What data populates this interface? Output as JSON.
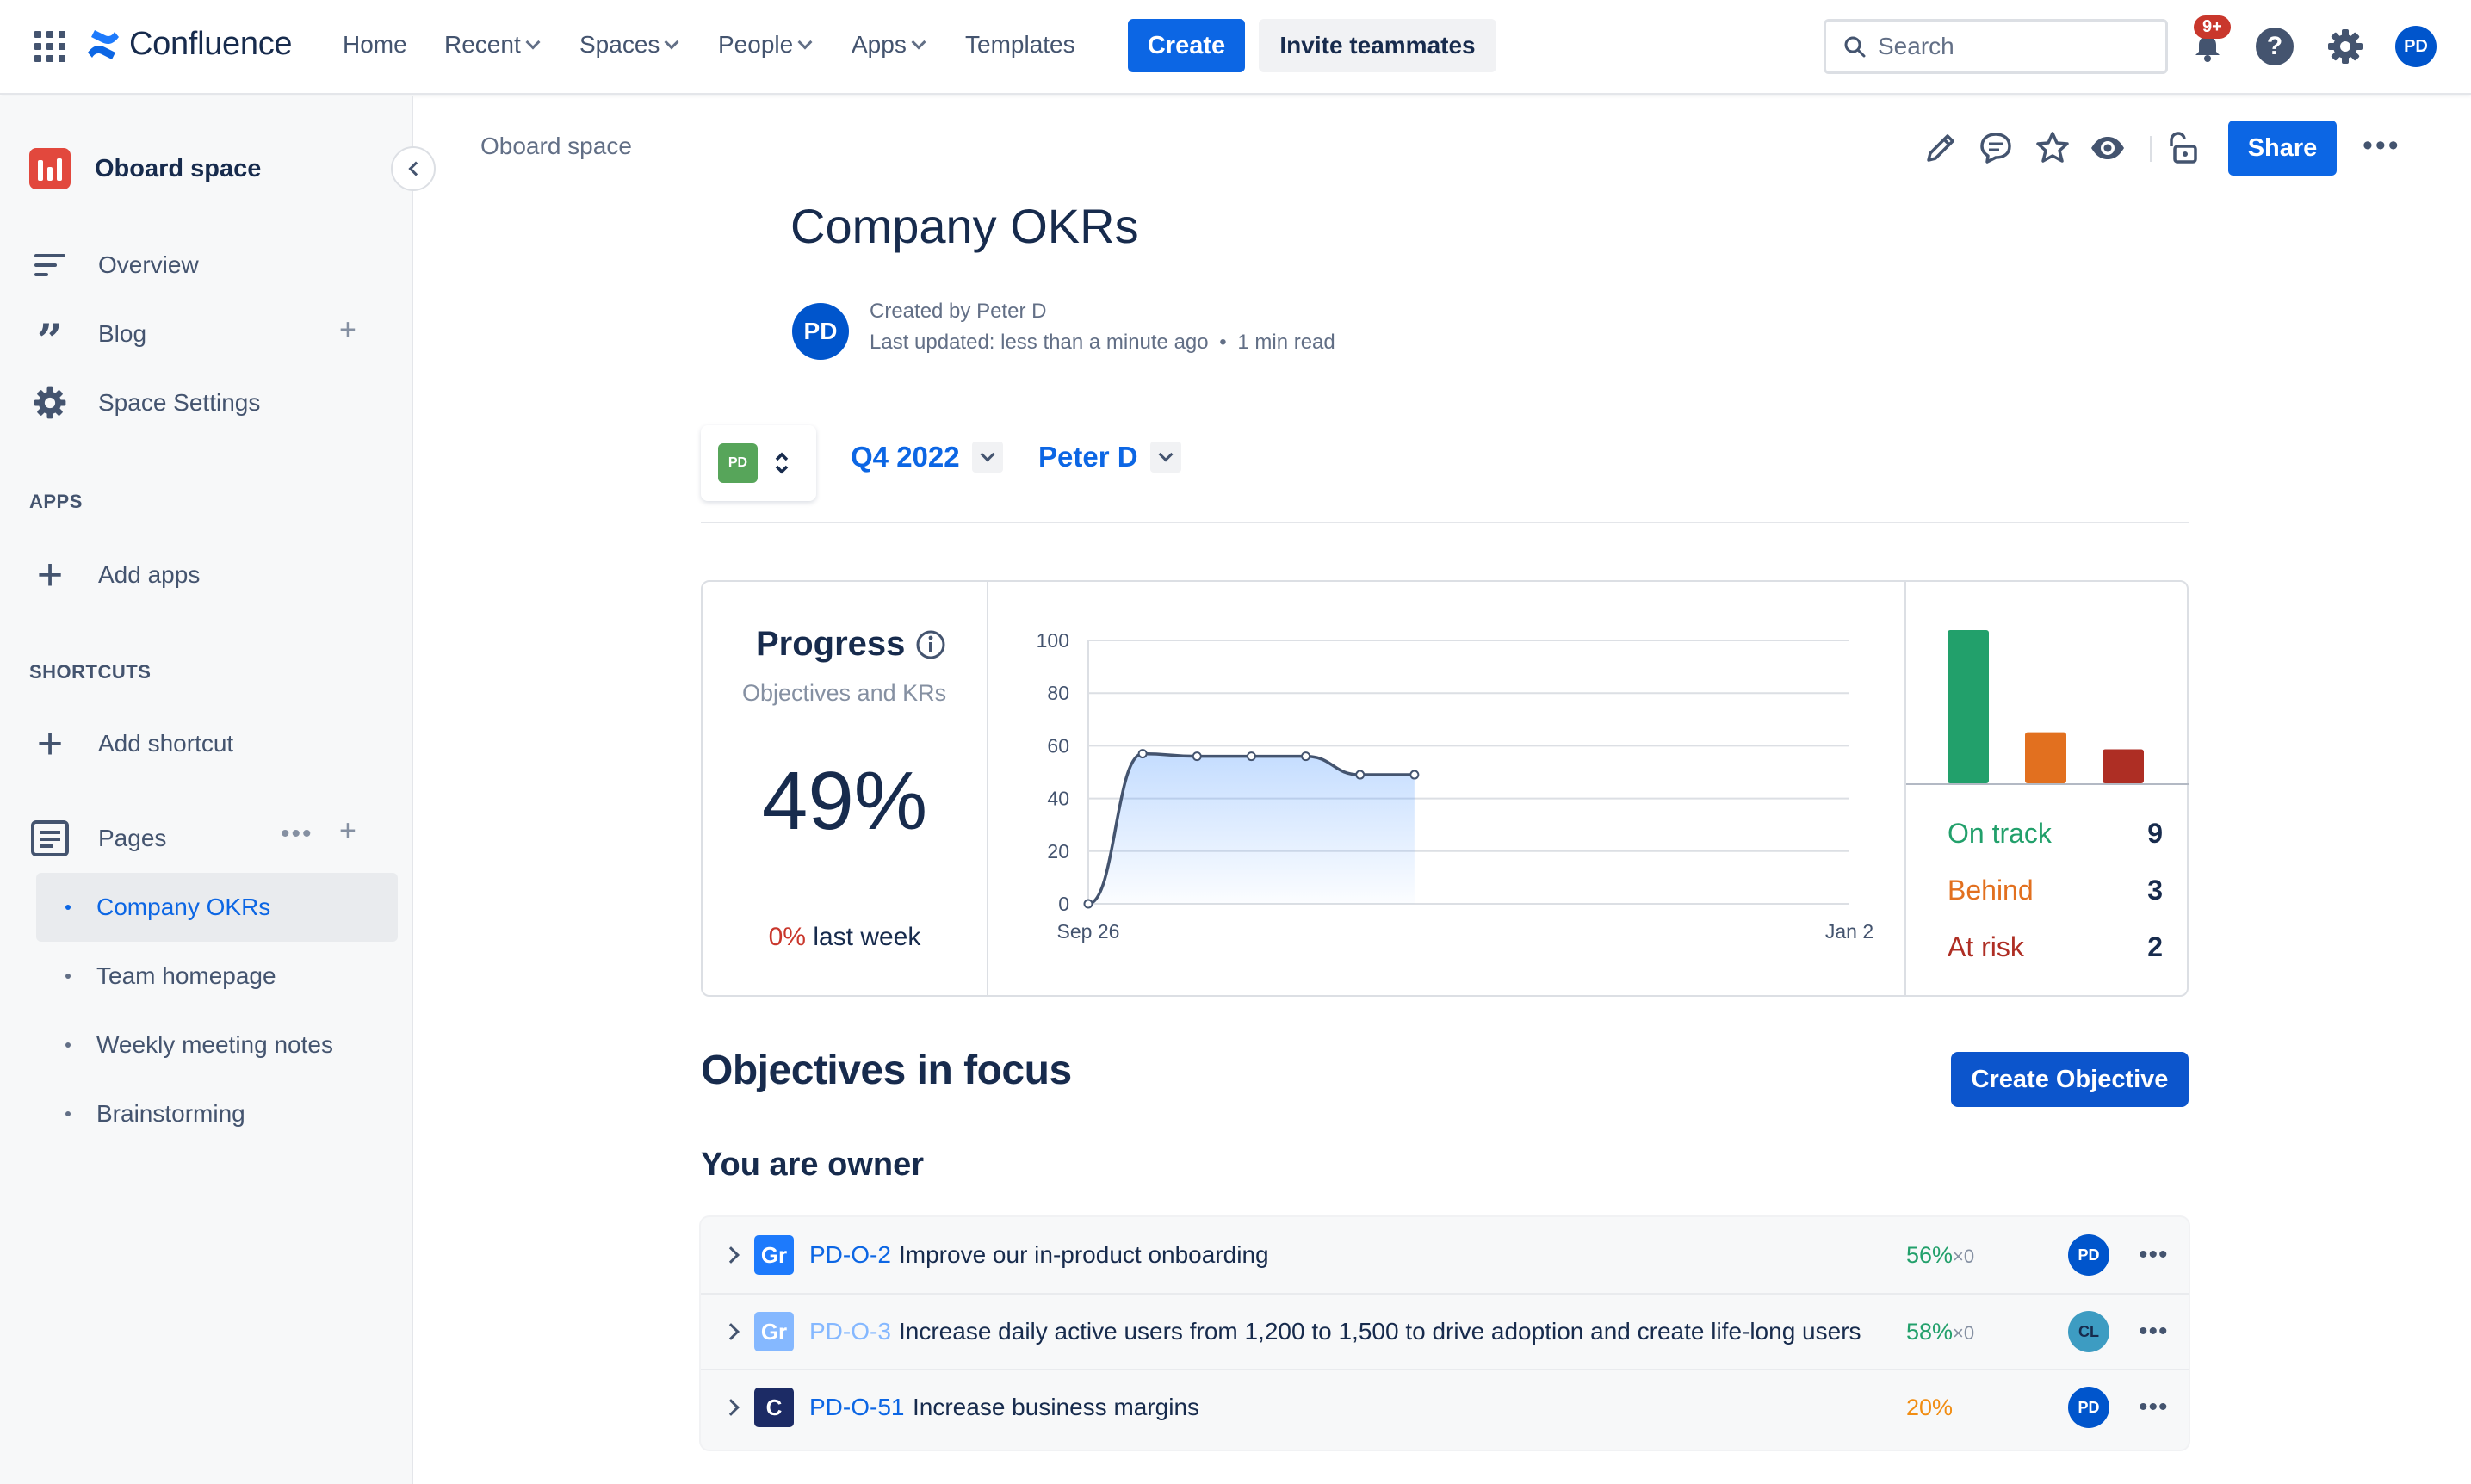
{
  "app": {
    "name": "Confluence"
  },
  "nav": {
    "home": "Home",
    "recent": "Recent",
    "spaces": "Spaces",
    "people": "People",
    "apps": "Apps",
    "templates": "Templates",
    "create": "Create",
    "invite": "Invite teammates",
    "search_placeholder": "Search",
    "notification_count": "9+",
    "user_initials": "PD"
  },
  "sidebar": {
    "space_name": "Oboard space",
    "items": [
      {
        "label": "Overview"
      },
      {
        "label": "Blog"
      },
      {
        "label": "Space Settings"
      }
    ],
    "apps_section": "APPS",
    "add_apps": "Add apps",
    "shortcuts_section": "SHORTCUTS",
    "add_shortcut": "Add shortcut",
    "pages_label": "Pages",
    "pages": [
      {
        "label": "Company OKRs"
      },
      {
        "label": "Team homepage"
      },
      {
        "label": "Weekly meeting notes"
      },
      {
        "label": "Brainstorming"
      }
    ]
  },
  "page": {
    "breadcrumb": "Oboard space",
    "share": "Share",
    "title": "Company OKRs",
    "author_initials": "PD",
    "created_by": "Created by Peter D",
    "last_updated": "Last updated: less than a minute ago",
    "read_time": "1 min read"
  },
  "filters": {
    "team_initials": "PD",
    "period": "Q4 2022",
    "owner": "Peter D"
  },
  "progress": {
    "title": "Progress",
    "subtitle": "Objectives and KRs",
    "value": "49%",
    "week_change": "0%",
    "week_label": "last week"
  },
  "chart_data": {
    "type": "area",
    "title": "",
    "x": [
      "Sep 26",
      "",
      "",
      "",
      "",
      "",
      ""
    ],
    "values": [
      0,
      57,
      56,
      56,
      56,
      49,
      49
    ],
    "x_tick_labels": [
      "Sep 26",
      "Jan 2"
    ],
    "y_ticks": [
      "0",
      "20",
      "40",
      "60",
      "80",
      "100"
    ],
    "ylim": [
      0,
      100
    ],
    "grid": true,
    "colors": {
      "line": "#44546f",
      "fill": "#579dff"
    }
  },
  "status": {
    "bars": [
      {
        "name": "On track",
        "value": 9,
        "color": "#22a06b"
      },
      {
        "name": "Behind",
        "value": 3,
        "color": "#e2701f"
      },
      {
        "name": "At risk",
        "value": 2,
        "color": "#ae2e24"
      }
    ],
    "on_track_label": "On track",
    "on_track_count": "9",
    "behind_label": "Behind",
    "behind_count": "3",
    "at_risk_label": "At risk",
    "at_risk_count": "2"
  },
  "objectives": {
    "heading": "Objectives in focus",
    "create_button": "Create Objective",
    "owner_heading": "You are owner",
    "rows": [
      {
        "badge": "Gr",
        "key": "PD-O-2",
        "name": "Improve our in-product onboarding",
        "pct": "56%",
        "mult": "×0",
        "owner": "PD"
      },
      {
        "badge": "Gr",
        "key": "PD-O-3",
        "name": "Increase daily active users from 1,200 to 1,500 to drive adoption and create life-long users",
        "pct": "58%",
        "mult": "×0",
        "owner": "CL"
      },
      {
        "badge": "C",
        "key": "PD-O-51",
        "name": "Increase business margins",
        "pct": "20%",
        "mult": "",
        "owner": "PD"
      }
    ]
  }
}
